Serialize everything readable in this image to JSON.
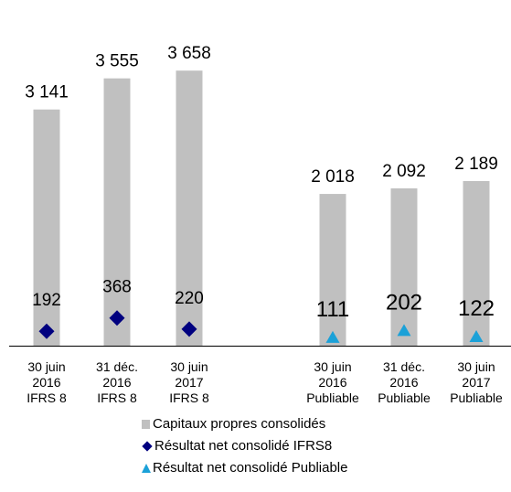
{
  "chart_data": {
    "type": "bar",
    "title": "",
    "xlabel": "",
    "ylabel": "",
    "ylim": [
      0,
      4500
    ],
    "grid": false,
    "legend_position": "bottom",
    "categories": [
      [
        "30 juin",
        "2016",
        "IFRS 8"
      ],
      [
        "31 déc.",
        "2016",
        "IFRS 8"
      ],
      [
        "30 juin",
        "2017",
        "IFRS 8"
      ],
      [
        "30 juin",
        "2016",
        "Publiable"
      ],
      [
        "31 déc.",
        "2016",
        "Publiable"
      ],
      [
        "30 juin",
        "2017",
        "Publiable"
      ]
    ],
    "series": [
      {
        "name": "Capitaux propres consolidés",
        "kind": "bar",
        "values": [
          3141,
          3555,
          3658,
          2018,
          2092,
          2189
        ],
        "labels": [
          "3 141",
          "3 555",
          "3 658",
          "2 018",
          "2 092",
          "2 189"
        ],
        "color": "#c0c0c0"
      },
      {
        "name": "Résultat net consolidé IFRS8",
        "kind": "marker",
        "marker": "diamond",
        "values": [
          192,
          368,
          220,
          null,
          null,
          null
        ],
        "labels": [
          "192",
          "368",
          "220",
          null,
          null,
          null
        ],
        "color": "#00007f"
      },
      {
        "name": "Résultat net consolidé Publiable",
        "kind": "marker",
        "marker": "triangle",
        "values": [
          null,
          null,
          null,
          111,
          202,
          122
        ],
        "labels": [
          null,
          null,
          null,
          "111",
          "202",
          "122"
        ],
        "color": "#1ba1d8"
      }
    ]
  },
  "legend": {
    "items": [
      {
        "label": "Capitaux propres consolidés",
        "icon": "gray-square"
      },
      {
        "label": "Résultat net consolidé IFRS8",
        "icon": "navy-diamond"
      },
      {
        "label": "Résultat net consolidé Publiable",
        "icon": "blue-triangle"
      }
    ]
  }
}
